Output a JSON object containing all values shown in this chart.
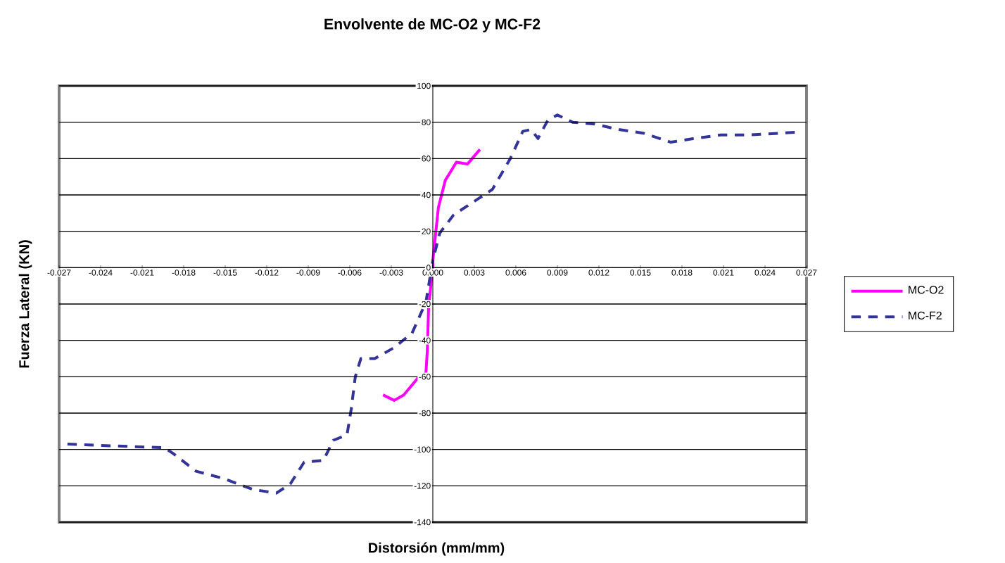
{
  "chart_data": {
    "type": "line",
    "title": "Envolvente de MC-O2 y MC-F2",
    "xlabel": "Distorsión (mm/mm)",
    "ylabel": "Fuerza Lateral (KN)",
    "xlim": [
      -0.027,
      0.027
    ],
    "ylim": [
      -140,
      100
    ],
    "xticks": [
      -0.027,
      -0.024,
      -0.021,
      -0.018,
      -0.015,
      -0.012,
      -0.009,
      -0.006,
      -0.003,
      {
        "value": 0,
        "label": "0.000"
      },
      0.003,
      0.006,
      0.009,
      0.012,
      0.015,
      0.018,
      0.021,
      0.024,
      0.027
    ],
    "yticks": [
      -140,
      -120,
      -100,
      -80,
      -60,
      -40,
      -20,
      0,
      20,
      40,
      60,
      80,
      100
    ],
    "grid": "y",
    "legend": "right",
    "marker": "none",
    "series": [
      {
        "name": "MC-O2",
        "color": "#ff00ff",
        "line_style": "solid",
        "x": [
          -0.0036,
          -0.0028,
          -0.0021,
          -0.001,
          -0.0005,
          -0.0004,
          -0.0003,
          0.0,
          0.0,
          0.0004,
          0.0009,
          0.0017,
          0.0025,
          0.0034
        ],
        "values": [
          -70,
          -73,
          -70,
          -60,
          -58,
          -46,
          -21,
          0,
          4,
          33,
          48,
          58,
          57,
          65
        ]
      },
      {
        "name": "MC-F2",
        "color": "#333399",
        "line_style": "dashed",
        "x": [
          -0.0264,
          -0.0233,
          -0.0194,
          -0.0188,
          -0.0171,
          -0.0151,
          -0.013,
          -0.0113,
          -0.0103,
          -0.0093,
          -0.0079,
          -0.0072,
          -0.0062,
          -0.0059,
          -0.0056,
          -0.0052,
          -0.0042,
          -0.0028,
          -0.0015,
          -0.0005,
          0.0,
          0.0005,
          0.0015,
          0.0033,
          0.0043,
          0.0056,
          0.0065,
          0.0071,
          0.0076,
          0.0083,
          0.009,
          0.0101,
          0.0117,
          0.0134,
          0.0152,
          0.0172,
          0.0188,
          0.0208,
          0.0229,
          0.0263
        ],
        "values": [
          -97,
          -98,
          -99,
          -102,
          -112,
          -116,
          -122,
          -124,
          -119,
          -107,
          -106,
          -95,
          -92,
          -78,
          -60,
          -50,
          -50,
          -44,
          -36,
          -19,
          4,
          19,
          29,
          38,
          43,
          60,
          75,
          76,
          71,
          81,
          84,
          80,
          79,
          76,
          74,
          69,
          71,
          73,
          73,
          74.5
        ]
      }
    ]
  }
}
